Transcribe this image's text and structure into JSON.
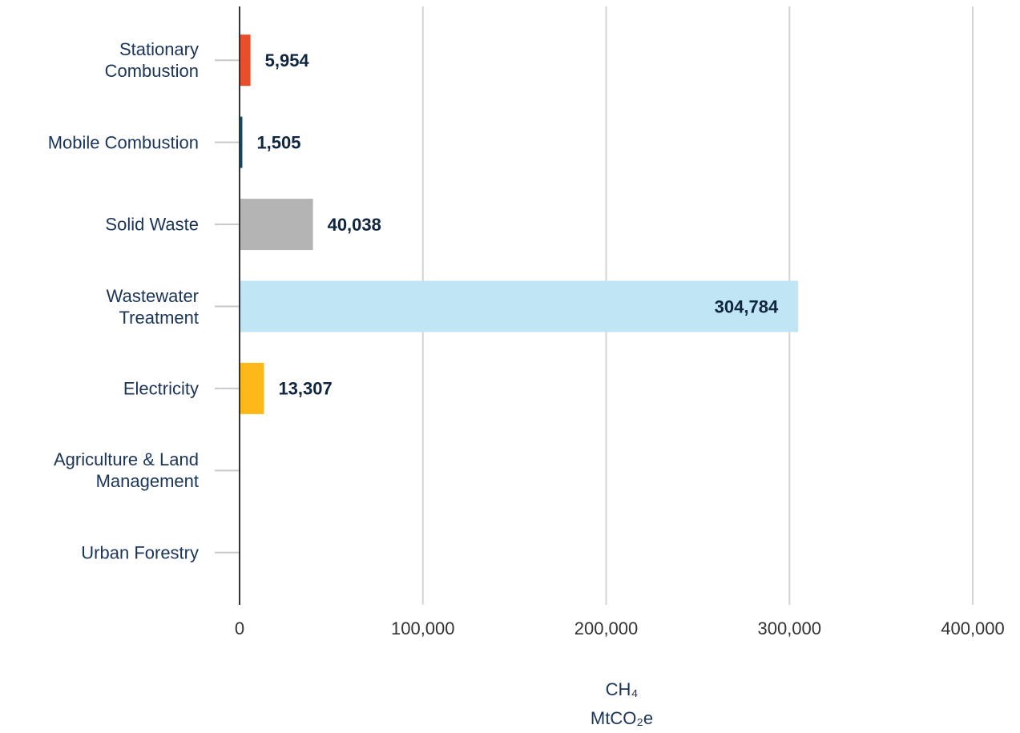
{
  "chart_data": {
    "type": "barh",
    "categories": [
      "Stationary\nCombustion",
      "Mobile Combustion",
      "Solid Waste",
      "Wastewater\nTreatment",
      "Electricity",
      "Agriculture & Land\nManagement",
      "Urban Forestry"
    ],
    "values": [
      5954,
      1505,
      40038,
      304784,
      13307,
      null,
      null
    ],
    "value_labels": [
      "5,954",
      "1,505",
      "40,038",
      "304,784",
      "13,307",
      null,
      null
    ],
    "colors": [
      "#e94e2c",
      "#0e4a6f",
      "#b4b4b4",
      "#c0e6f6",
      "#fbb818",
      null,
      null
    ],
    "xlim": [
      0,
      400000
    ],
    "xticks": [
      0,
      {
        "value": 100000,
        "label": "100,000"
      },
      {
        "value": 200000,
        "label": "200,000"
      },
      {
        "value": 300000,
        "label": "300,000"
      },
      {
        "value": 400000,
        "label": "400,000"
      }
    ],
    "xlabel": [
      "CH₄",
      "MtCO₂e"
    ],
    "grid": true
  }
}
